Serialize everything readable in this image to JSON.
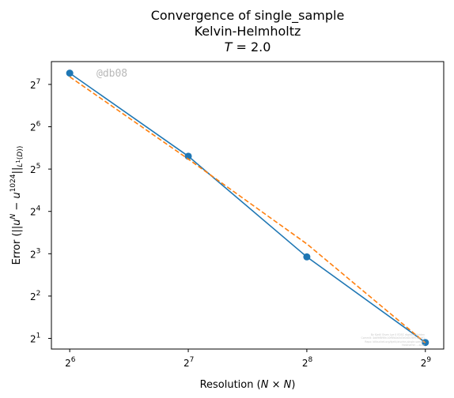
{
  "chart_data": {
    "type": "line",
    "title_lines": [
      "Convergence of single_sample",
      "Kelvin-Helmholtz",
      "T = 2.0"
    ],
    "xlabel": "Resolution (N × N)",
    "ylabel": "Error (||uᴺ − u¹⁰²⁴||L¹(D))",
    "x_scale": "log2",
    "y_scale": "log2",
    "x": [
      64,
      128,
      256,
      512
    ],
    "xlim": [
      57.5,
      570
    ],
    "ylim": [
      1.68,
      186
    ],
    "x_ticks": [
      {
        "exp": "6",
        "value": 64
      },
      {
        "exp": "7",
        "value": 128
      },
      {
        "exp": "8",
        "value": 256
      },
      {
        "exp": "9",
        "value": 512
      }
    ],
    "y_ticks": [
      {
        "exp": "1",
        "value": 2
      },
      {
        "exp": "2",
        "value": 4
      },
      {
        "exp": "3",
        "value": 8
      },
      {
        "exp": "4",
        "value": 16
      },
      {
        "exp": "5",
        "value": 32
      },
      {
        "exp": "6",
        "value": 64
      },
      {
        "exp": "7",
        "value": 128
      }
    ],
    "series": [
      {
        "values": [
          154.0,
          39.5,
          7.6,
          1.87
        ],
        "color": "#1f77b4",
        "style": "solid",
        "markers": true
      },
      {
        "values": [
          145.0,
          37.7,
          9.4,
          1.86
        ],
        "color": "#ff7f0e",
        "style": "dashed",
        "markers": false
      }
    ],
    "grid": false,
    "legend": "none"
  },
  "watermark": "@db08",
  "fine_print": [
    "By Kjetil Olsen Lye 0 EDSC digital.s Hidden",
    "Commit: 4dd9f8f69c10f6fb0a5d3e0d01f8f91ec9f1",
    "Repo: bitbucket.org/kjetil/alsvinn-single-sample",
    "Hostname: ...local"
  ]
}
